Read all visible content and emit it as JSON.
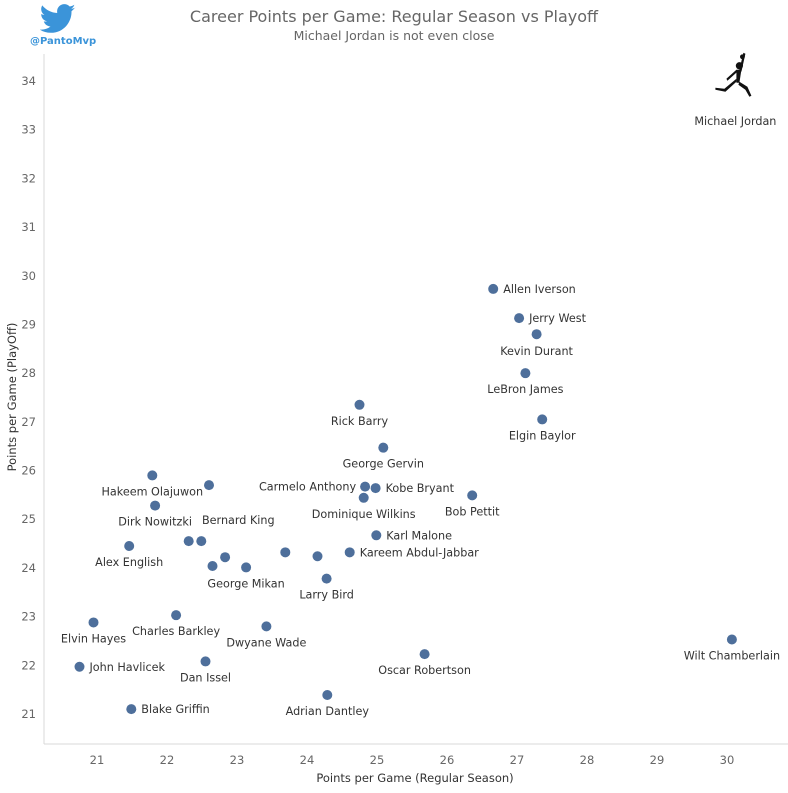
{
  "header": {
    "handle": "@PantoMvp",
    "title": "Career Points per Game: Regular Season vs Playoff",
    "subtitle": "Michael Jordan is not even close"
  },
  "colors": {
    "point": "#4e6f9b",
    "twitter": "#3b94d9",
    "text": "#333333",
    "muted": "#666666"
  },
  "icons": [
    "twitter-bird-icon",
    "jumpman-logo-icon"
  ],
  "chart_data": {
    "type": "scatter",
    "xlabel": "Points per Game (Regular Season)",
    "ylabel": "Points per Game (PlayOff)",
    "xlim": [
      20.25,
      30.85
    ],
    "ylim": [
      20.4,
      34.7
    ],
    "xticks": [
      21,
      22,
      23,
      24,
      25,
      26,
      27,
      28,
      29,
      30
    ],
    "yticks": [
      21,
      22,
      23,
      24,
      25,
      26,
      27,
      28,
      29,
      30,
      31,
      32,
      33,
      34
    ],
    "grid": false,
    "points": [
      {
        "name": "Michael Jordan",
        "x": 30.12,
        "y": 33.45,
        "marker": "logo"
      },
      {
        "name": "Allen Iverson",
        "x": 26.66,
        "y": 29.73
      },
      {
        "name": "Jerry West",
        "x": 27.03,
        "y": 29.13
      },
      {
        "name": "Kevin Durant",
        "x": 27.28,
        "y": 28.8
      },
      {
        "name": "LeBron James",
        "x": 27.12,
        "y": 28.0
      },
      {
        "name": "Rick Barry",
        "x": 24.75,
        "y": 27.35
      },
      {
        "name": "Elgin Baylor",
        "x": 27.36,
        "y": 27.05
      },
      {
        "name": "George Gervin",
        "x": 25.09,
        "y": 26.47
      },
      {
        "name": "Hakeem Olajuwon",
        "x": 21.79,
        "y": 25.9
      },
      {
        "name": null,
        "x": 22.6,
        "y": 25.7
      },
      {
        "name": "Carmelo Anthony",
        "x": 24.83,
        "y": 25.67
      },
      {
        "name": "Kobe Bryant",
        "x": 24.98,
        "y": 25.64
      },
      {
        "name": "Dominique Wilkins",
        "x": 24.81,
        "y": 25.44
      },
      {
        "name": "Bob Pettit",
        "x": 26.36,
        "y": 25.49
      },
      {
        "name": "Dirk Nowitzki",
        "x": 21.83,
        "y": 25.28
      },
      {
        "name": "Karl Malone",
        "x": 24.99,
        "y": 24.67
      },
      {
        "name": "Bernard King",
        "x": 22.49,
        "y": 24.55
      },
      {
        "name": null,
        "x": 22.31,
        "y": 24.55
      },
      {
        "name": "Alex English",
        "x": 21.46,
        "y": 24.45
      },
      {
        "name": "Kareem Abdul-Jabbar",
        "x": 24.61,
        "y": 24.32
      },
      {
        "name": null,
        "x": 23.69,
        "y": 24.32
      },
      {
        "name": null,
        "x": 24.15,
        "y": 24.24
      },
      {
        "name": null,
        "x": 22.83,
        "y": 24.22
      },
      {
        "name": "George Mikan",
        "x": 23.13,
        "y": 24.01
      },
      {
        "name": null,
        "x": 22.65,
        "y": 24.04
      },
      {
        "name": "Larry Bird",
        "x": 24.28,
        "y": 23.78
      },
      {
        "name": "Charles Barkley",
        "x": 22.13,
        "y": 23.03
      },
      {
        "name": "Elvin Hayes",
        "x": 20.95,
        "y": 22.88
      },
      {
        "name": "Dwyane Wade",
        "x": 23.42,
        "y": 22.8
      },
      {
        "name": "Wilt Chamberlain",
        "x": 30.07,
        "y": 22.53
      },
      {
        "name": "Oscar Robertson",
        "x": 25.68,
        "y": 22.23
      },
      {
        "name": "Dan Issel",
        "x": 22.55,
        "y": 22.08
      },
      {
        "name": "John Havlicek",
        "x": 20.75,
        "y": 21.97
      },
      {
        "name": "Adrian Dantley",
        "x": 24.29,
        "y": 21.39
      },
      {
        "name": "Blake Griffin",
        "x": 21.49,
        "y": 21.1
      }
    ]
  }
}
